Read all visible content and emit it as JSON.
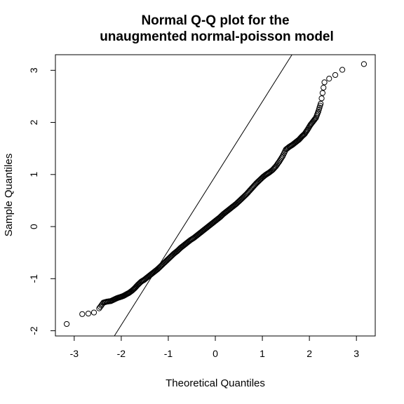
{
  "chart_data": {
    "type": "scatter",
    "title_line1": "Normal Q-Q plot for the",
    "title_line2": "unaugmented normal-poisson model",
    "xlabel": "Theoretical Quantiles",
    "ylabel": "Sample Quantiles",
    "xlim": [
      -3.4,
      3.4
    ],
    "ylim": [
      -2.1,
      3.3
    ],
    "x_ticks": [
      -3,
      -2,
      -1,
      0,
      1,
      2,
      3
    ],
    "x_tick_labels": [
      "-3",
      "-2",
      "-1",
      "0",
      "1",
      "2",
      "3"
    ],
    "y_ticks": [
      -2,
      -1,
      0,
      1,
      2,
      3
    ],
    "y_tick_labels": [
      "-2",
      "-1",
      "0",
      "1",
      "2",
      "3"
    ],
    "reference_line": {
      "slope": 1.43,
      "intercept": 0.97
    },
    "grid": false,
    "points": {
      "x": [
        -3.16,
        -2.83,
        -2.7,
        -2.58,
        -2.47,
        -2.38,
        -2.3,
        -2.22,
        -2.15,
        -2.08,
        -2.01,
        -1.95,
        -1.89,
        -1.83,
        -1.77,
        -1.71,
        -1.65,
        -1.58,
        -1.51,
        -1.44,
        -1.37,
        -1.3,
        -1.23,
        -1.16,
        -1.09,
        -1.02,
        -0.95,
        -0.88,
        -0.81,
        -0.74,
        -0.67,
        -0.6,
        -0.53,
        -0.46,
        -0.39,
        -0.32,
        -0.25,
        -0.18,
        -0.11,
        -0.04,
        0.03,
        0.1,
        0.17,
        0.24,
        0.31,
        0.38,
        0.45,
        0.52,
        0.59,
        0.66,
        0.73,
        0.8,
        0.87,
        0.94,
        1.01,
        1.08,
        1.15,
        1.22,
        1.29,
        1.36,
        1.43,
        1.5,
        1.57,
        1.64,
        1.71,
        1.78,
        1.84,
        1.9,
        1.96,
        2.02,
        2.08,
        2.14,
        2.19,
        2.24,
        2.32,
        2.42,
        2.55,
        2.7,
        3.16
      ],
      "y": [
        -1.87,
        -1.68,
        -1.67,
        -1.65,
        -1.57,
        -1.46,
        -1.44,
        -1.43,
        -1.4,
        -1.37,
        -1.35,
        -1.33,
        -1.3,
        -1.27,
        -1.23,
        -1.18,
        -1.12,
        -1.06,
        -1.02,
        -0.97,
        -0.92,
        -0.87,
        -0.82,
        -0.76,
        -0.7,
        -0.64,
        -0.58,
        -0.52,
        -0.47,
        -0.41,
        -0.36,
        -0.31,
        -0.26,
        -0.22,
        -0.17,
        -0.12,
        -0.07,
        -0.02,
        0.03,
        0.08,
        0.13,
        0.18,
        0.24,
        0.29,
        0.34,
        0.39,
        0.44,
        0.5,
        0.56,
        0.62,
        0.69,
        0.76,
        0.83,
        0.89,
        0.95,
        1.0,
        1.04,
        1.09,
        1.16,
        1.25,
        1.35,
        1.48,
        1.53,
        1.57,
        1.62,
        1.67,
        1.73,
        1.78,
        1.86,
        1.95,
        2.02,
        2.09,
        2.21,
        2.36,
        2.77,
        2.84,
        2.91,
        3.01,
        3.12
      ]
    }
  }
}
